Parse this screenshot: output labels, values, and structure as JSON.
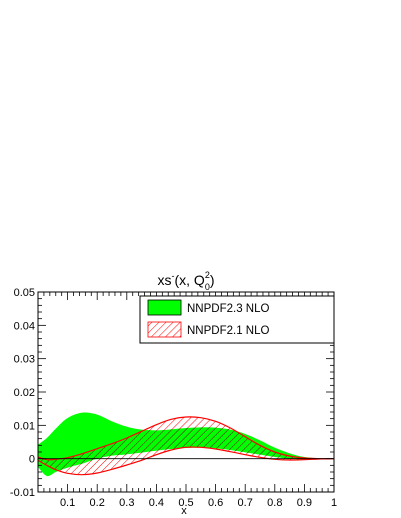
{
  "chart_data": {
    "type": "area",
    "title": {
      "main": "xs",
      "sup": "-",
      "args_open": "(x, Q",
      "q_sup": "2",
      "q_sub": "0",
      "args_close": ")"
    },
    "xlabel": "x",
    "ylabel": "",
    "xlim": [
      0.0,
      1.0
    ],
    "ylim": [
      -0.01,
      0.05
    ],
    "x_ticks": [
      "0.1",
      "0.2",
      "0.3",
      "0.4",
      "0.5",
      "0.6",
      "0.7",
      "0.8",
      "0.9",
      "1"
    ],
    "y_ticks": [
      "-0.01",
      "0",
      "0.01",
      "0.02",
      "0.03",
      "0.04",
      "0.05"
    ],
    "legend_position": "top-right",
    "series": [
      {
        "name": "NNPDF2.3 NLO",
        "style": "filled",
        "fill": "#00ff00",
        "stroke": "#000000",
        "x": [
          0.0,
          0.03,
          0.06,
          0.1,
          0.15,
          0.2,
          0.25,
          0.3,
          0.35,
          0.4,
          0.45,
          0.5,
          0.55,
          0.6,
          0.65,
          0.7,
          0.75,
          0.8,
          0.85,
          0.9,
          0.95,
          1.0
        ],
        "upper": [
          0.0042,
          0.0062,
          0.009,
          0.0122,
          0.0138,
          0.0132,
          0.0112,
          0.0096,
          0.0087,
          0.0085,
          0.0088,
          0.0092,
          0.0094,
          0.0093,
          0.0087,
          0.0074,
          0.0055,
          0.0033,
          0.0016,
          0.0005,
          0.0001,
          0.0
        ],
        "lower": [
          -0.0025,
          -0.0052,
          -0.004,
          -0.0027,
          -0.0015,
          0.0,
          0.0009,
          0.0013,
          0.0018,
          0.0024,
          0.0029,
          0.0032,
          0.0033,
          0.0031,
          0.0026,
          0.0019,
          0.0012,
          0.0005,
          0.0,
          -0.0002,
          -0.0001,
          0.0
        ]
      },
      {
        "name": "NNPDF2.1 NLO",
        "style": "hatched",
        "fill": "#ff0000",
        "stroke": "#ff0000",
        "x": [
          0.0,
          0.03,
          0.06,
          0.1,
          0.15,
          0.2,
          0.25,
          0.3,
          0.35,
          0.4,
          0.45,
          0.5,
          0.55,
          0.6,
          0.65,
          0.7,
          0.75,
          0.8,
          0.85,
          0.9,
          0.95,
          1.0
        ],
        "upper": [
          0.0005,
          -0.0003,
          -0.0002,
          0.0003,
          0.0015,
          0.003,
          0.0045,
          0.0062,
          0.0082,
          0.0102,
          0.0118,
          0.0125,
          0.0123,
          0.0112,
          0.0092,
          0.0066,
          0.004,
          0.002,
          0.0008,
          0.0002,
          0.0,
          0.0
        ],
        "lower": [
          -0.0005,
          -0.002,
          -0.0033,
          -0.0044,
          -0.0048,
          -0.0043,
          -0.0032,
          -0.0019,
          -0.0005,
          0.0012,
          0.0026,
          0.0034,
          0.0034,
          0.0029,
          0.0021,
          0.0012,
          0.0004,
          -0.0002,
          -0.0004,
          -0.0003,
          -0.0001,
          0.0
        ]
      }
    ]
  }
}
